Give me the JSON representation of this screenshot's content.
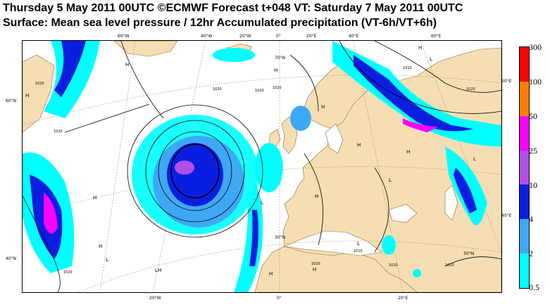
{
  "header": {
    "line1": "Thursday 5 May 2011 00UTC ©ECMWF Forecast t+048 VT: Saturday 7 May 2011 00UTC",
    "line2": "Surface: Mean sea level pressure / 12hr Accumulated precipitation (VT-6h/VT+6h)"
  },
  "map": {
    "lon_labels_top": [
      "60°W",
      "40°W",
      "20°W",
      "0°",
      "20°E",
      "40°E",
      "60°E"
    ],
    "lon_labels_bottom": [
      "20°W",
      "0°",
      "20°E"
    ],
    "lat_labels": [
      "60°N",
      "40°N",
      "70°N",
      "60°E",
      "40°E",
      "30°N",
      "30°N"
    ],
    "pressure_labels": [
      "1020",
      "1020",
      "1020",
      "1020",
      "1010",
      "1020",
      "1010",
      "1020",
      "1010",
      "1020",
      "1020",
      "1010"
    ],
    "high_markers": [
      "H",
      "H",
      "H",
      "H",
      "H",
      "H",
      "H",
      "H",
      "H",
      "H",
      "H",
      "H",
      "H"
    ],
    "low_markers": [
      "L",
      "L",
      "L",
      "L",
      "L",
      "L",
      "L",
      "L"
    ],
    "colors": {
      "land": "#f5deb3",
      "sea": "#ffffff",
      "precip_cyan": "#00ffff",
      "precip_light_blue": "#3fa8f5",
      "precip_blue": "#0a1ee0",
      "precip_purple": "#b050e8",
      "precip_magenta": "#ff00ff",
      "precip_orange": "#ff8000",
      "precip_red": "#ff0000"
    }
  },
  "colorbar": {
    "labels": [
      "300",
      "100",
      "50",
      "25",
      "10",
      "4",
      "2",
      "0.5"
    ],
    "segments": [
      {
        "color": "#ff0000"
      },
      {
        "color": "#ff8000"
      },
      {
        "color": "#ff00ff"
      },
      {
        "color": "#b050e8"
      },
      {
        "color": "#0a1ee0"
      },
      {
        "color": "#3fa8f5"
      },
      {
        "color": "#00ffff"
      }
    ]
  }
}
